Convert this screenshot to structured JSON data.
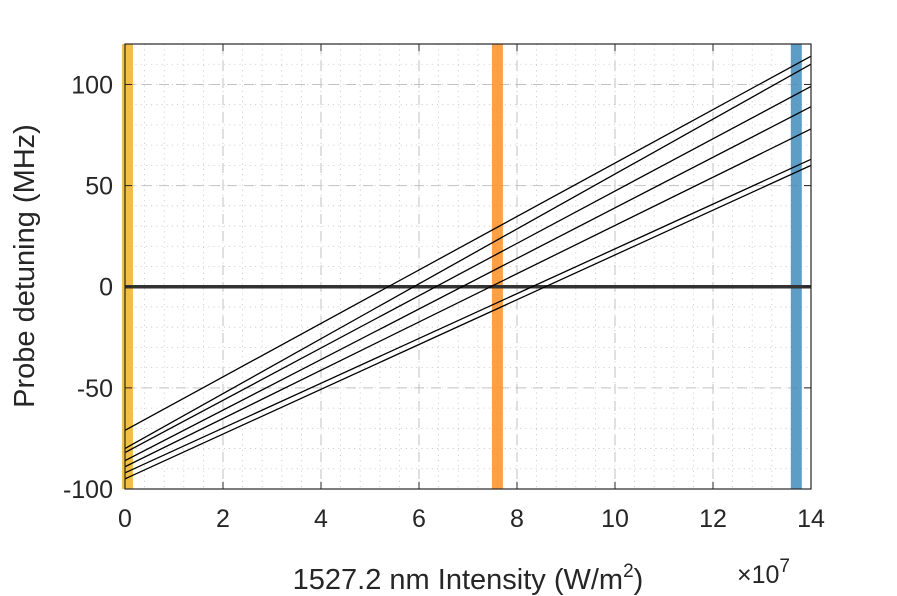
{
  "chart_data": {
    "type": "line",
    "title": "",
    "xlabel_main": "1527.2 nm Intensity (W/m",
    "xlabel_sup": "2",
    "xlabel_close": ")",
    "x_multiplier_prefix": "×10",
    "x_multiplier_exp": "7",
    "ylabel": "Probe detuning (MHz)",
    "xlim": [
      0,
      14
    ],
    "ylim": [
      -100,
      120
    ],
    "xticks": [
      0,
      2,
      4,
      6,
      8,
      10,
      12,
      14
    ],
    "xtick_labels": [
      "0",
      "2",
      "4",
      "6",
      "8",
      "10",
      "12",
      "14"
    ],
    "yticks": [
      -100,
      -50,
      0,
      50,
      100
    ],
    "ytick_labels": [
      "-100",
      "-50",
      "0",
      "50",
      "100"
    ],
    "grid": true,
    "minor_grid": true,
    "series": [
      {
        "x": [
          0,
          14
        ],
        "y": [
          -71,
          114
        ]
      },
      {
        "x": [
          0,
          14
        ],
        "y": [
          -80,
          110
        ]
      },
      {
        "x": [
          0,
          14
        ],
        "y": [
          -82,
          99
        ]
      },
      {
        "x": [
          0,
          14
        ],
        "y": [
          -86,
          89
        ]
      },
      {
        "x": [
          0,
          14
        ],
        "y": [
          -89,
          78
        ]
      },
      {
        "x": [
          0,
          14
        ],
        "y": [
          -92,
          63
        ]
      },
      {
        "x": [
          0,
          14
        ],
        "y": [
          -95,
          60
        ]
      }
    ],
    "zero_line": {
      "y": 0,
      "color": "#333333"
    },
    "vertical_bands": [
      {
        "x": 0.05,
        "color": "#EDB120"
      },
      {
        "x": 7.6,
        "color": "#FF8C1A"
      },
      {
        "x": 13.7,
        "color": "#3A87B8"
      }
    ]
  }
}
